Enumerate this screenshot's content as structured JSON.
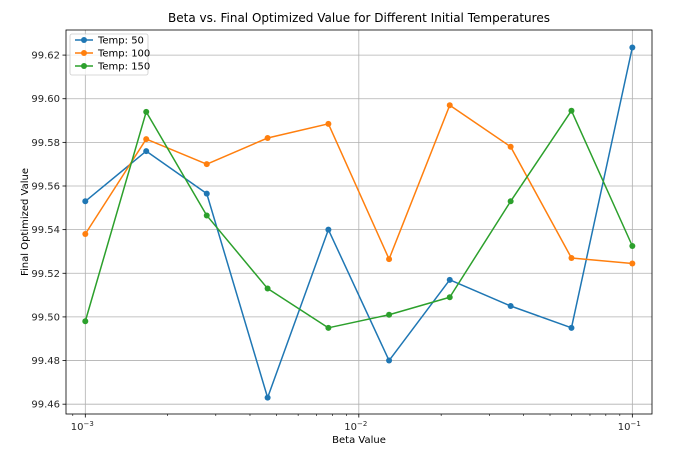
{
  "chart_data": {
    "type": "line",
    "title": "Beta vs. Final Optimized Value for Different Initial Temperatures",
    "xlabel": "Beta Value",
    "ylabel": "Final Optimized Value",
    "x_scale": "log",
    "xlim": [
      0.00085,
      0.118
    ],
    "ylim": [
      99.4555,
      99.6315
    ],
    "x_ticks": [
      {
        "value": 0.001,
        "base": "10",
        "exp": "−3"
      },
      {
        "value": 0.01,
        "base": "10",
        "exp": "−2"
      },
      {
        "value": 0.1,
        "base": "10",
        "exp": "−1"
      }
    ],
    "y_ticks": [
      "99.46",
      "99.48",
      "99.50",
      "99.52",
      "99.54",
      "99.56",
      "99.58",
      "99.60",
      "99.62"
    ],
    "grid": true,
    "legend_position": "top-left",
    "x": [
      0.001,
      0.00167,
      0.00278,
      0.00464,
      0.00774,
      0.0129,
      0.0215,
      0.0359,
      0.0599,
      0.1
    ],
    "series": [
      {
        "name": "Temp: 50",
        "color": "#1f77b4",
        "values": [
          99.553,
          99.576,
          99.5565,
          99.463,
          99.54,
          99.48,
          99.517,
          99.505,
          99.495,
          99.6235
        ]
      },
      {
        "name": "Temp: 100",
        "color": "#ff7f0e",
        "values": [
          99.538,
          99.5815,
          99.57,
          99.582,
          99.5885,
          99.5265,
          99.597,
          99.578,
          99.527,
          99.5245
        ]
      },
      {
        "name": "Temp: 150",
        "color": "#2ca02c",
        "values": [
          99.498,
          99.594,
          99.5465,
          99.513,
          99.495,
          99.501,
          99.509,
          99.553,
          99.5945,
          99.5325
        ]
      }
    ]
  }
}
